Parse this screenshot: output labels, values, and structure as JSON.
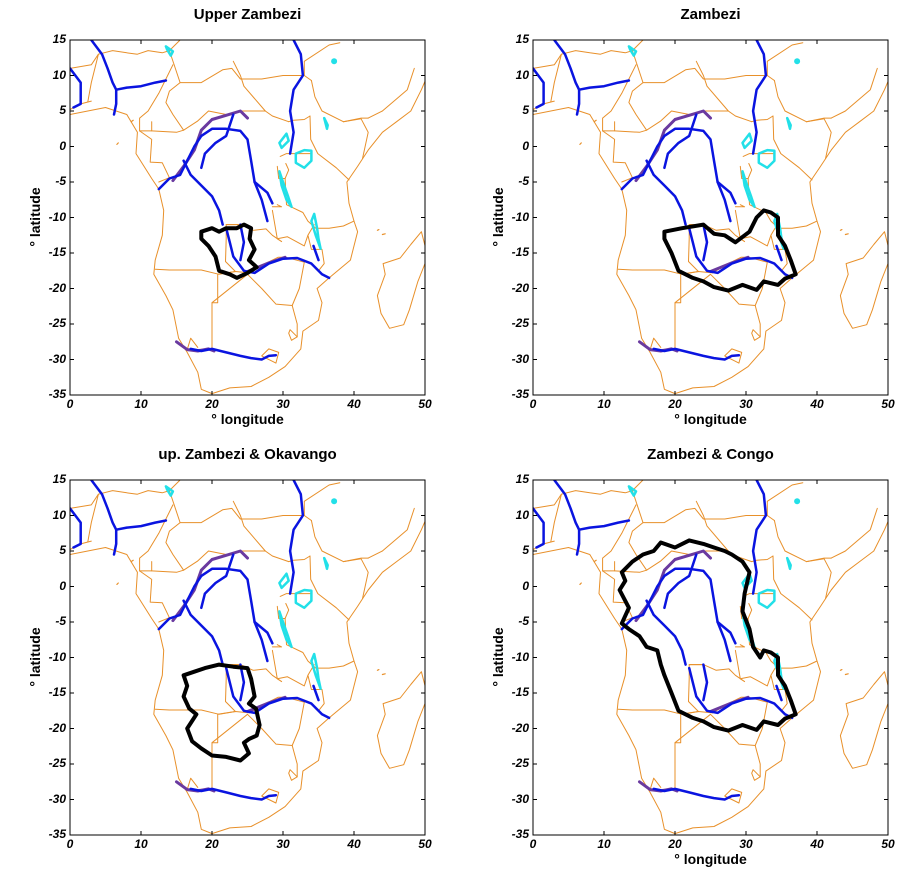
{
  "figure": {
    "xticks": [
      "0",
      "10",
      "20",
      "30",
      "40",
      "50"
    ],
    "yticks": [
      "15",
      "10",
      "5",
      "0",
      "-5",
      "-10",
      "-15",
      "-20",
      "-25",
      "-30",
      "-35"
    ],
    "xlabel": "° longitude",
    "ylabel": "° latitude",
    "xlim": [
      0,
      50
    ],
    "ylim": [
      -35,
      15
    ],
    "colors": {
      "borders": "#e8902a",
      "rivers": "#0a14e0",
      "lakes": "#22e0e8",
      "basin_outline": "#000000",
      "border_river": "#6a3aa0"
    },
    "panels": [
      {
        "title": "Upper Zambezi",
        "basin": "upper_zambezi",
        "show_xlabel": true
      },
      {
        "title": "Zambezi",
        "basin": "zambezi",
        "show_xlabel": true
      },
      {
        "title": "up. Zambezi & Okavango",
        "basin": "okavango",
        "show_xlabel": false
      },
      {
        "title": "Zambezi & Congo",
        "basin": "congo",
        "show_xlabel": true
      }
    ]
  }
}
